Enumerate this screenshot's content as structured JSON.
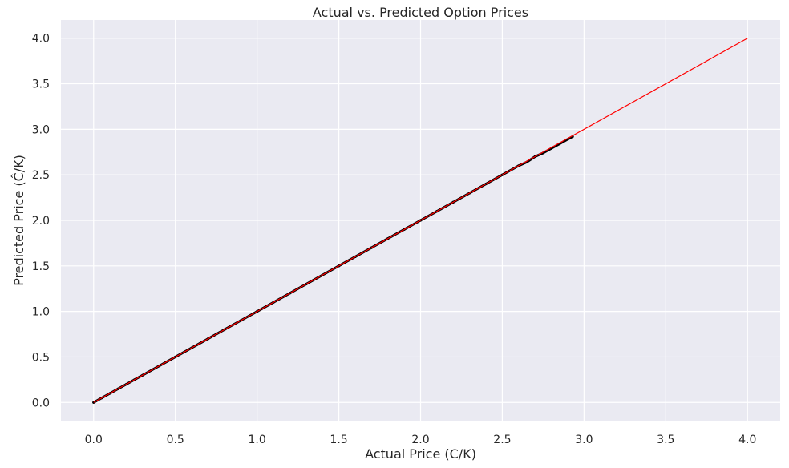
{
  "chart_data": {
    "type": "scatter",
    "title": "Actual vs. Predicted Option Prices",
    "xlabel": "Actual Price (C/K)",
    "ylabel": "Predicted Price (Ĉ/K)",
    "xlim": [
      -0.2,
      4.2
    ],
    "ylim": [
      -0.2,
      4.2
    ],
    "xticks": [
      0.0,
      0.5,
      1.0,
      1.5,
      2.0,
      2.5,
      3.0,
      3.5,
      4.0
    ],
    "yticks": [
      0.0,
      0.5,
      1.0,
      1.5,
      2.0,
      2.5,
      3.0,
      3.5,
      4.0
    ],
    "xtick_labels": [
      "0.0",
      "0.5",
      "1.0",
      "1.5",
      "2.0",
      "2.5",
      "3.0",
      "3.5",
      "4.0"
    ],
    "ytick_labels": [
      "0.0",
      "0.5",
      "1.0",
      "1.5",
      "2.0",
      "2.5",
      "3.0",
      "3.5",
      "4.0"
    ],
    "grid": true,
    "background": "#eaeaf2",
    "series": [
      {
        "kind": "scatter",
        "color": "#000000",
        "x": [
          0.0,
          0.05,
          0.1,
          0.15,
          0.2,
          0.25,
          0.3,
          0.4,
          0.5,
          0.6,
          0.7,
          0.8,
          0.9,
          1.0,
          1.1,
          1.2,
          1.3,
          1.4,
          1.5,
          1.6,
          1.7,
          1.8,
          1.9,
          2.0,
          2.1,
          2.2,
          2.3,
          2.4,
          2.5,
          2.6,
          2.65,
          2.7,
          2.75,
          2.8,
          2.85,
          2.9,
          2.93
        ],
        "y": [
          0.0,
          0.05,
          0.1,
          0.15,
          0.2,
          0.25,
          0.3,
          0.4,
          0.5,
          0.6,
          0.7,
          0.8,
          0.9,
          1.0,
          1.1,
          1.2,
          1.3,
          1.4,
          1.5,
          1.6,
          1.7,
          1.8,
          1.9,
          2.0,
          2.1,
          2.2,
          2.3,
          2.4,
          2.5,
          2.6,
          2.64,
          2.7,
          2.74,
          2.79,
          2.84,
          2.89,
          2.92
        ]
      },
      {
        "kind": "line",
        "color": "#ff0000",
        "x": [
          0.0,
          4.0
        ],
        "y": [
          0.0,
          4.0
        ]
      }
    ]
  }
}
